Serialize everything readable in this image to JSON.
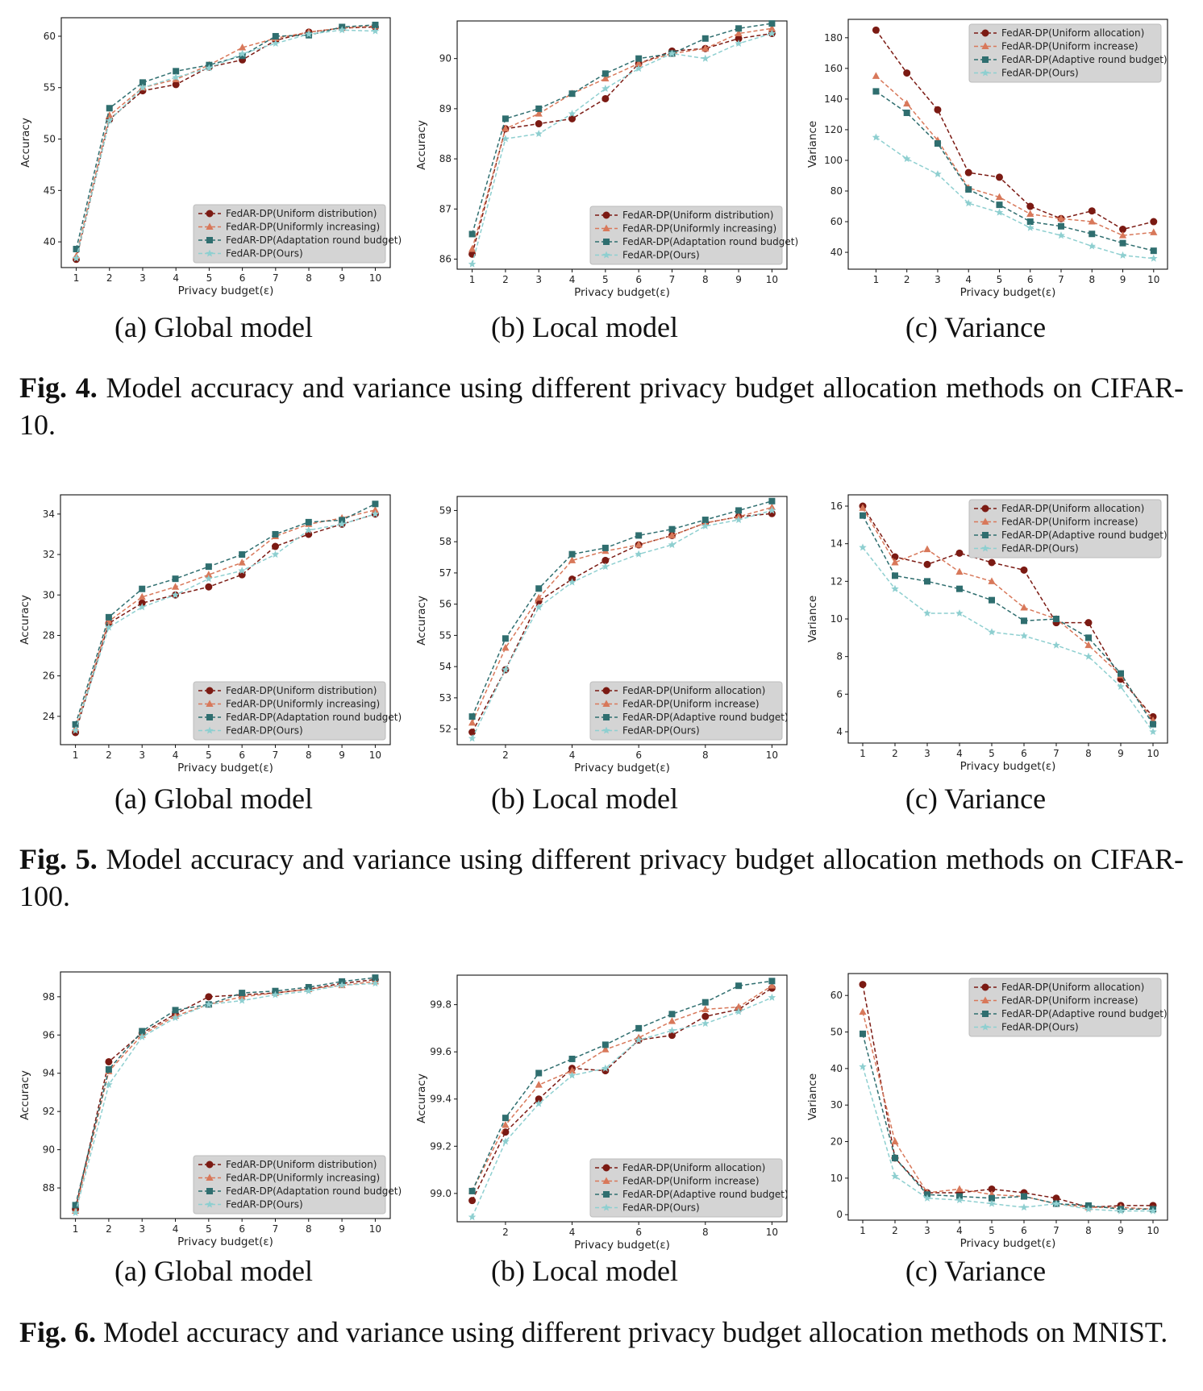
{
  "colors": {
    "uniform": "#7b1a13",
    "increase": "#d8785a",
    "adaptive": "#2f6e6f",
    "ours": "#8ecfd0"
  },
  "series_style": [
    {
      "color_key": "uniform",
      "marker": "circle"
    },
    {
      "color_key": "increase",
      "marker": "triangle"
    },
    {
      "color_key": "adaptive",
      "marker": "square"
    },
    {
      "color_key": "ours",
      "marker": "star"
    }
  ],
  "figures": [
    {
      "label": "Fig. 4.",
      "text": " Model accuracy and variance using different privacy budget allocation methods on CIFAR-10.",
      "subcaptions": [
        "(a) Global model",
        "(b) Local model",
        "(c) Variance"
      ]
    },
    {
      "label": "Fig. 5.",
      "text": " Model accuracy and variance using different privacy budget allocation methods on CIFAR-100.",
      "subcaptions": [
        "(a) Global model",
        "(b) Local model",
        "(c) Variance"
      ]
    },
    {
      "label": "Fig. 6.",
      "text": " Model accuracy and variance using different privacy budget allocation methods on MNIST.",
      "subcaptions": [
        "(a) Global model",
        "(b) Local model",
        "(c) Variance"
      ]
    }
  ],
  "chart_data": [
    {
      "type": "line",
      "xlabel": "Privacy budget(ε)",
      "ylabel": "Accuracy",
      "x": [
        1,
        2,
        3,
        4,
        5,
        6,
        7,
        8,
        9,
        10
      ],
      "xticks": [
        1,
        2,
        3,
        4,
        5,
        6,
        7,
        8,
        9,
        10
      ],
      "ylim": [
        37.5,
        61.8
      ],
      "yticks": [
        40,
        45,
        50,
        55,
        60
      ],
      "ytick_labels": [
        "40",
        "45",
        "50",
        "55",
        "60"
      ],
      "xlim": [
        0.55,
        10.45
      ],
      "grid": false,
      "legend_position": "lower-right",
      "series": [
        {
          "name": "FedAR-DP(Uniform distribution)",
          "values": [
            38.3,
            51.9,
            54.7,
            55.3,
            57.0,
            57.7,
            59.6,
            60.4,
            60.8,
            60.9
          ]
        },
        {
          "name": "FedAR-DP(Uniformly increasing)",
          "values": [
            38.6,
            52.3,
            55.0,
            55.8,
            57.2,
            58.9,
            59.8,
            60.4,
            60.8,
            61.0
          ]
        },
        {
          "name": "FedAR-DP(Adaptation round budget)",
          "values": [
            39.3,
            53.0,
            55.5,
            56.6,
            57.2,
            58.1,
            60.0,
            60.1,
            60.9,
            61.1
          ]
        },
        {
          "name": "FedAR-DP(Ours)",
          "values": [
            38.4,
            51.8,
            55.0,
            56.0,
            56.9,
            58.3,
            59.3,
            60.2,
            60.6,
            60.5
          ]
        }
      ]
    },
    {
      "type": "line",
      "xlabel": "Privacy budget(ε)",
      "ylabel": "Accuracy",
      "x": [
        1,
        2,
        3,
        4,
        5,
        6,
        7,
        8,
        9,
        10
      ],
      "xticks": [
        1,
        2,
        3,
        4,
        5,
        6,
        7,
        8,
        9,
        10
      ],
      "ylim": [
        85.8,
        90.75
      ],
      "yticks": [
        86,
        87,
        88,
        89,
        90
      ],
      "ytick_labels": [
        "86",
        "87",
        "88",
        "89",
        "90"
      ],
      "xlim": [
        0.55,
        10.45
      ],
      "grid": false,
      "legend_position": "lower-right",
      "series": [
        {
          "name": "FedAR-DP(Uniform distribution)",
          "values": [
            86.1,
            88.6,
            88.7,
            88.8,
            89.2,
            89.9,
            90.15,
            90.2,
            90.4,
            90.5
          ]
        },
        {
          "name": "FedAR-DP(Uniformly increasing)",
          "values": [
            86.2,
            88.6,
            88.9,
            89.3,
            89.6,
            89.9,
            90.1,
            90.2,
            90.5,
            90.6
          ]
        },
        {
          "name": "FedAR-DP(Adaptation round budget)",
          "values": [
            86.5,
            88.8,
            89.0,
            89.3,
            89.7,
            90.0,
            90.1,
            90.4,
            90.6,
            90.7
          ]
        },
        {
          "name": "FedAR-DP(Ours)",
          "values": [
            85.9,
            88.4,
            88.5,
            88.9,
            89.4,
            89.8,
            90.1,
            90.0,
            90.3,
            90.5
          ]
        }
      ]
    },
    {
      "type": "line",
      "xlabel": "Privacy budget(ε)",
      "ylabel": "Variance",
      "x": [
        1,
        2,
        3,
        4,
        5,
        6,
        7,
        8,
        9,
        10
      ],
      "xticks": [
        1,
        2,
        3,
        4,
        5,
        6,
        7,
        8,
        9,
        10
      ],
      "ylim": [
        29,
        192
      ],
      "yticks": [
        40,
        60,
        80,
        100,
        120,
        140,
        160,
        180
      ],
      "ytick_labels": [
        "40",
        "60",
        "80",
        "100",
        "120",
        "140",
        "160",
        "180"
      ],
      "xlim": [
        0.1,
        10.45
      ],
      "grid": false,
      "legend_position": "upper-right",
      "series": [
        {
          "name": "FedAR-DP(Uniform allocation)",
          "values": [
            185,
            157,
            133,
            92,
            89,
            70,
            62,
            67,
            55,
            60
          ]
        },
        {
          "name": "FedAR-DP(Uniform increase)",
          "values": [
            155,
            137,
            113,
            82,
            76,
            65,
            62,
            60,
            51,
            53
          ]
        },
        {
          "name": "FedAR-DP(Adaptive round budget)",
          "values": [
            145,
            131,
            111,
            81,
            71,
            60,
            57,
            52,
            46,
            41
          ]
        },
        {
          "name": "FedAR-DP(Ours)",
          "values": [
            115,
            101,
            91,
            72,
            66,
            56,
            51,
            44,
            38,
            36
          ]
        }
      ]
    },
    {
      "type": "line",
      "xlabel": "Privacy budget(ε)",
      "ylabel": "Accuracy",
      "x": [
        1,
        2,
        3,
        4,
        5,
        6,
        7,
        8,
        9,
        10
      ],
      "xticks": [
        1,
        2,
        3,
        4,
        5,
        6,
        7,
        8,
        9,
        10
      ],
      "ylim": [
        22.6,
        34.95
      ],
      "yticks": [
        24,
        26,
        28,
        30,
        32,
        34
      ],
      "ytick_labels": [
        "24",
        "26",
        "28",
        "30",
        "32",
        "34"
      ],
      "xlim": [
        0.55,
        10.45
      ],
      "grid": false,
      "legend_position": "lower-right",
      "series": [
        {
          "name": "FedAR-DP(Uniform distribution)",
          "values": [
            23.2,
            28.6,
            29.6,
            30.0,
            30.4,
            31.0,
            32.4,
            33.0,
            33.5,
            34.0
          ]
        },
        {
          "name": "FedAR-DP(Uniformly increasing)",
          "values": [
            23.4,
            28.7,
            29.9,
            30.4,
            31.0,
            31.6,
            32.9,
            33.5,
            33.8,
            34.2
          ]
        },
        {
          "name": "FedAR-DP(Adaptation round budget)",
          "values": [
            23.6,
            28.9,
            30.3,
            30.8,
            31.4,
            32.0,
            33.0,
            33.6,
            33.7,
            34.5
          ]
        },
        {
          "name": "FedAR-DP(Ours)",
          "values": [
            23.3,
            28.4,
            29.4,
            30.0,
            30.8,
            31.2,
            32.0,
            33.2,
            33.5,
            34.0
          ]
        }
      ]
    },
    {
      "type": "line",
      "xlabel": "Privacy budget(ε)",
      "ylabel": "Accuracy",
      "x": [
        1,
        2,
        3,
        4,
        5,
        6,
        7,
        8,
        9,
        10
      ],
      "xticks": [
        2,
        4,
        6,
        8,
        10
      ],
      "ylim": [
        51.5,
        59.45
      ],
      "yticks": [
        52,
        53,
        54,
        55,
        56,
        57,
        58,
        59
      ],
      "ytick_labels": [
        "52",
        "53",
        "54",
        "55",
        "56",
        "57",
        "58",
        "59"
      ],
      "xlim": [
        0.55,
        10.45
      ],
      "grid": false,
      "legend_position": "lower-right",
      "series": [
        {
          "name": "FedAR-DP(Uniform allocation)",
          "values": [
            51.9,
            53.9,
            56.1,
            56.8,
            57.4,
            57.9,
            58.2,
            58.6,
            58.8,
            58.9
          ]
        },
        {
          "name": "FedAR-DP(Uniform increase)",
          "values": [
            52.2,
            54.6,
            56.2,
            57.4,
            57.7,
            57.9,
            58.2,
            58.6,
            58.8,
            59.1
          ]
        },
        {
          "name": "FedAR-DP(Adaptive round budget)",
          "values": [
            52.4,
            54.9,
            56.5,
            57.6,
            57.8,
            58.2,
            58.4,
            58.7,
            59.0,
            59.3
          ]
        },
        {
          "name": "FedAR-DP(Ours)",
          "values": [
            51.7,
            53.9,
            55.9,
            56.7,
            57.2,
            57.6,
            57.9,
            58.5,
            58.7,
            59.0
          ]
        }
      ]
    },
    {
      "type": "line",
      "xlabel": "Privacy budget(ε)",
      "ylabel": "Variance",
      "x": [
        1,
        2,
        3,
        4,
        5,
        6,
        7,
        8,
        9,
        10
      ],
      "xticks": [
        1,
        2,
        3,
        4,
        5,
        6,
        7,
        8,
        9,
        10
      ],
      "ylim": [
        3.4,
        16.6
      ],
      "yticks": [
        4,
        6,
        8,
        10,
        12,
        14,
        16
      ],
      "ytick_labels": [
        "4",
        "6",
        "8",
        "10",
        "12",
        "14",
        "16"
      ],
      "xlim": [
        0.55,
        10.45
      ],
      "grid": false,
      "legend_position": "upper-right",
      "series": [
        {
          "name": "FedAR-DP(Uniform allocation)",
          "values": [
            16.0,
            13.3,
            12.9,
            13.5,
            13.0,
            12.6,
            9.8,
            9.8,
            6.8,
            4.8
          ]
        },
        {
          "name": "FedAR-DP(Uniform increase)",
          "values": [
            15.9,
            13.0,
            13.7,
            12.5,
            12.0,
            10.6,
            10.0,
            8.6,
            7.0,
            4.6
          ]
        },
        {
          "name": "FedAR-DP(Adaptive round budget)",
          "values": [
            15.5,
            12.3,
            12.0,
            11.6,
            11.0,
            9.9,
            10.0,
            9.0,
            7.1,
            4.4
          ]
        },
        {
          "name": "FedAR-DP(Ours)",
          "values": [
            13.8,
            11.6,
            10.3,
            10.3,
            9.3,
            9.1,
            8.6,
            8.0,
            6.4,
            4.0
          ]
        }
      ]
    },
    {
      "type": "line",
      "xlabel": "Privacy budget(ε)",
      "ylabel": "Accuracy",
      "x": [
        1,
        2,
        3,
        4,
        5,
        6,
        7,
        8,
        9,
        10
      ],
      "xticks": [
        1,
        2,
        3,
        4,
        5,
        6,
        7,
        8,
        9,
        10
      ],
      "ylim": [
        86.4,
        99.3
      ],
      "yticks": [
        88,
        90,
        92,
        94,
        96,
        98
      ],
      "ytick_labels": [
        "88",
        "90",
        "92",
        "94",
        "96",
        "98"
      ],
      "xlim": [
        0.55,
        10.45
      ],
      "grid": false,
      "legend_position": "lower-right",
      "series": [
        {
          "name": "FedAR-DP(Uniform distribution)",
          "values": [
            86.9,
            94.6,
            96.1,
            97.1,
            98.0,
            98.1,
            98.2,
            98.4,
            98.7,
            98.9
          ]
        },
        {
          "name": "FedAR-DP(Uniformly increasing)",
          "values": [
            86.8,
            94.1,
            96.0,
            97.0,
            97.6,
            98.0,
            98.2,
            98.4,
            98.6,
            98.8
          ]
        },
        {
          "name": "FedAR-DP(Adaptation round budget)",
          "values": [
            87.1,
            94.2,
            96.2,
            97.3,
            97.6,
            98.2,
            98.3,
            98.5,
            98.8,
            99.0
          ]
        },
        {
          "name": "FedAR-DP(Ours)",
          "values": [
            86.7,
            93.4,
            95.9,
            96.9,
            97.6,
            97.8,
            98.1,
            98.3,
            98.6,
            98.7
          ]
        }
      ]
    },
    {
      "type": "line",
      "xlabel": "Privacy budget(ε)",
      "ylabel": "Accuracy",
      "x": [
        1,
        2,
        3,
        4,
        5,
        6,
        7,
        8,
        9,
        10
      ],
      "xticks": [
        2,
        4,
        6,
        8,
        10
      ],
      "ylim": [
        98.88,
        99.925
      ],
      "yticks": [
        99.0,
        99.2,
        99.4,
        99.6,
        99.8
      ],
      "ytick_labels": [
        "99.0",
        "99.2",
        "99.4",
        "99.6",
        "99.8"
      ],
      "xlim": [
        0.55,
        10.45
      ],
      "grid": false,
      "legend_position": "lower-right",
      "series": [
        {
          "name": "FedAR-DP(Uniform allocation)",
          "values": [
            98.97,
            99.26,
            99.4,
            99.53,
            99.52,
            99.65,
            99.67,
            99.75,
            99.78,
            99.87
          ]
        },
        {
          "name": "FedAR-DP(Uniform increase)",
          "values": [
            99.01,
            99.29,
            99.46,
            99.52,
            99.61,
            99.66,
            99.73,
            99.78,
            99.79,
            99.88
          ]
        },
        {
          "name": "FedAR-DP(Adaptive round budget)",
          "values": [
            99.01,
            99.32,
            99.51,
            99.57,
            99.63,
            99.7,
            99.76,
            99.81,
            99.88,
            99.9
          ]
        },
        {
          "name": "FedAR-DP(Ours)",
          "values": [
            98.9,
            99.22,
            99.38,
            99.5,
            99.53,
            99.65,
            99.69,
            99.72,
            99.77,
            99.83
          ]
        }
      ]
    },
    {
      "type": "line",
      "xlabel": "Privacy budget(ε)",
      "ylabel": "Variance",
      "x": [
        1,
        2,
        3,
        4,
        5,
        6,
        7,
        8,
        9,
        10
      ],
      "xticks": [
        1,
        2,
        3,
        4,
        5,
        6,
        7,
        8,
        9,
        10
      ],
      "ylim": [
        -1.5,
        66
      ],
      "yticks": [
        0,
        10,
        20,
        30,
        40,
        50,
        60
      ],
      "ytick_labels": [
        "0",
        "10",
        "20",
        "30",
        "40",
        "50",
        "60"
      ],
      "xlim": [
        0.55,
        10.45
      ],
      "grid": false,
      "legend_position": "upper-right",
      "series": [
        {
          "name": "FedAR-DP(Uniform allocation)",
          "values": [
            63.0,
            15.5,
            6.0,
            6.0,
            7.0,
            6.0,
            4.5,
            2.0,
            2.5,
            2.5
          ]
        },
        {
          "name": "FedAR-DP(Uniform increase)",
          "values": [
            55.5,
            20.0,
            6.0,
            7.0,
            5.5,
            5.0,
            3.0,
            2.0,
            2.0,
            1.5
          ]
        },
        {
          "name": "FedAR-DP(Adaptive round budget)",
          "values": [
            49.5,
            15.5,
            5.5,
            5.0,
            4.5,
            5.0,
            3.0,
            2.5,
            1.5,
            1.5
          ]
        },
        {
          "name": "FedAR-DP(Ours)",
          "values": [
            40.5,
            10.5,
            4.5,
            4.0,
            3.0,
            2.0,
            3.0,
            1.5,
            1.0,
            1.0
          ]
        }
      ]
    }
  ]
}
